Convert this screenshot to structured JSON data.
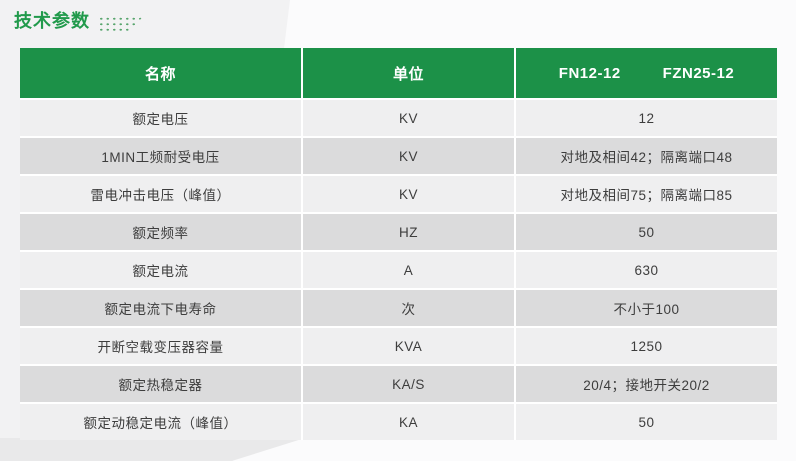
{
  "page": {
    "title": "技术参数"
  },
  "colors": {
    "header_green": "#1c9148",
    "title_green": "#219a4b",
    "row_light": "#efeff0",
    "row_dark": "#dbdbdc",
    "body_text": "#3d3d3d"
  },
  "table": {
    "headers": {
      "name": "名称",
      "unit": "单位",
      "model1": "FN12-12",
      "model2": "FZN25-12"
    },
    "rows": [
      {
        "name": "额定电压",
        "unit": "KV",
        "value": "12"
      },
      {
        "name": "1MIN工频耐受电压",
        "unit": "KV",
        "value": "对地及相间42；隔离端口48"
      },
      {
        "name": "雷电冲击电压（峰值）",
        "unit": "KV",
        "value": "对地及相间75；隔离端口85"
      },
      {
        "name": "额定频率",
        "unit": "HZ",
        "value": "50"
      },
      {
        "name": "额定电流",
        "unit": "A",
        "value": "630"
      },
      {
        "name": "额定电流下电寿命",
        "unit": "次",
        "value": "不小于100"
      },
      {
        "name": "开断空载变压器容量",
        "unit": "KVA",
        "value": "1250"
      },
      {
        "name": "额定热稳定器",
        "unit": "KA/S",
        "value": "20/4；接地开关20/2"
      },
      {
        "name": "额定动稳定电流（峰值）",
        "unit": "KA",
        "value": "50"
      }
    ]
  }
}
